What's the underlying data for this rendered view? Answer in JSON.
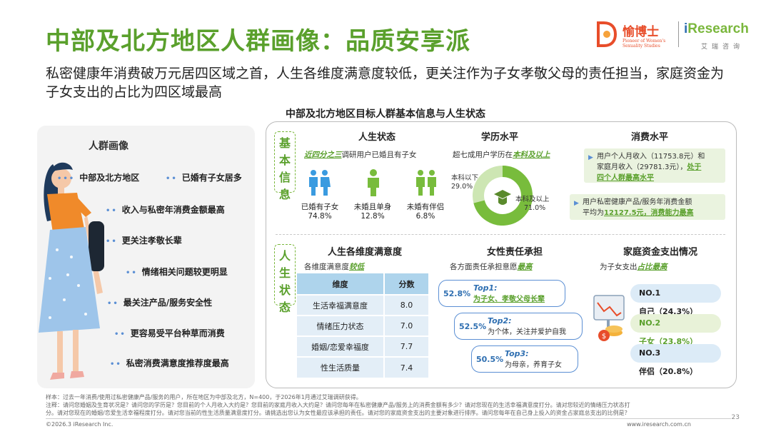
{
  "title": "中部及北方地区人群画像：品质安享派",
  "subtitle": "私密健康年消费破万元居四区域之首，人生各维度满意度较低，更关注作为子女孝敬父母的责任担当，家庭资金为子女支出的占比为四区域最高",
  "logo": {
    "brand_cn": "愉博士",
    "brand_en": "Pioneer of Women's Sexuality Studies",
    "ir_prefix": "i",
    "ir_name": "Research",
    "ir_cn": "艾瑞咨询"
  },
  "section_title": "中部及北方地区目标人群基本信息与人生状态",
  "portrait": {
    "title": "人群画像",
    "tag_region": "中部及北方地区",
    "tag_married": "已婚有子女居多",
    "traits": [
      "收入与私密年消费金额最高",
      "更关注孝敬长辈",
      "情绪相关问题较更明显",
      "最关注产品/服务安全性",
      "更容易受平台种草而消费",
      "私密消费满意度推荐度最高"
    ]
  },
  "band_basic": "基本信息",
  "band_life": "人生状态",
  "life_status": {
    "heading": "人生状态",
    "desc_hl": "近四分之三",
    "desc_rest": "调研用户已婚且有子女",
    "items": [
      {
        "label": "已婚有子女",
        "pct": "74.8%"
      },
      {
        "label": "未婚且单身",
        "pct": "12.8%"
      },
      {
        "label": "未婚有伴侣",
        "pct": "6.8%"
      }
    ],
    "icon_color": "#3a9be0"
  },
  "education": {
    "heading": "学历水平",
    "desc_pre": "超七成用户学历在",
    "desc_hl": "本科及以上",
    "below_label": "本科以下",
    "below_pct": "29.0%",
    "above_label": "本科及以上",
    "above_pct": "71.0%",
    "chart_values": [
      29.0,
      71.0
    ],
    "colors": [
      "#cde6b3",
      "#78bc3c"
    ]
  },
  "consumption": {
    "heading": "消费水平",
    "box1_line1": "用户个人月收入（11753.8元）和",
    "box1_line2": "家庭月收入（29781.3元），",
    "box1_hl": "处于",
    "box1_hl2": "四个人群最高水平",
    "box2_line1": "用户私密健康产品/服务年消费金额",
    "box2_line2": "平均为",
    "box2_hl": "12127.5元，消费能力最高"
  },
  "satisfaction": {
    "heading": "人生各维度满意度",
    "desc_pre": "各维度满意度",
    "desc_hl": "较低",
    "col_dim": "维度",
    "col_score": "分数",
    "rows": [
      {
        "dim": "生活幸福满意度",
        "score": "8.0"
      },
      {
        "dim": "情绪压力状态",
        "score": "7.0"
      },
      {
        "dim": "婚姻/恋爱幸福度",
        "score": "7.7"
      },
      {
        "dim": "性生活质量",
        "score": "7.4"
      }
    ]
  },
  "responsibility": {
    "heading": "女性责任承担",
    "desc_pre": "各方面责任承担意愿",
    "desc_hl": "最高",
    "items": [
      {
        "pct": "52.8%",
        "top": "Top1:",
        "text": "为子女、孝敬父母长辈"
      },
      {
        "pct": "52.5%",
        "top": "Top2:",
        "text": "为个体，关注并爱护自我"
      },
      {
        "pct": "50.5%",
        "top": "Top3:",
        "text": "为母亲，养育子女"
      }
    ]
  },
  "family_fund": {
    "heading": "家庭资金支出情况",
    "desc_pre": "为子女支出",
    "desc_hl": "占比最高",
    "ranks": [
      {
        "no": "NO.1",
        "label": "自己（24.3%）",
        "color": "#dcebf7"
      },
      {
        "no": "NO.2",
        "label": "子女（23.8%）",
        "color": "#e8f2d8"
      },
      {
        "no": "NO.3",
        "label": "伴侣（20.8%）",
        "color": "#dcebf7"
      }
    ]
  },
  "notes": {
    "line1": "样本：过去一年消费/使用过私密健康产品/服务的用户，所在地区为中部及北方，N=400，于2026年1月通过艾瑞调研获得。",
    "line2": "注释：请问您婚姻及生育状况是？请问您的学历是？您目前的个人月收入大约是？您目前的家庭月收入大约是？请问您每年在私密健康产品/服务上的消费金额有多少？请对您现在的生活幸福满意度打分。请对您较近的情绪压力状态打",
    "line3": "分。请对您现在的婚姻/恋爱生活幸福程度打分。请对您当前的性生活质量满意度打分。请挑选出您认为女性最应该承担的责任。请对您的家庭资金支出的主要对象进行排序。请问您每年在自己身上投入的资金占家庭总支出的比例是？"
  },
  "copyright": "©2026.3 iResearch Inc.",
  "site": "www.iresearch.com.cn",
  "page_number": "23"
}
